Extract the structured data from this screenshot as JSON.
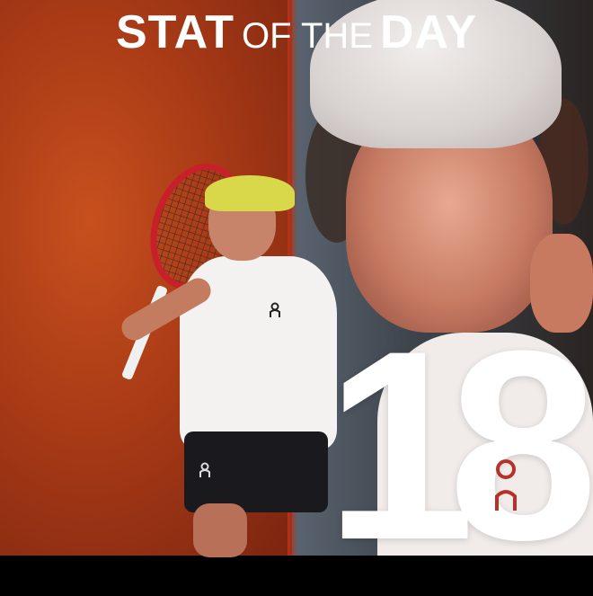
{
  "header": {
    "title_bold_1": "STAT",
    "title_light": "OF THE",
    "title_bold_2": "DAY"
  },
  "stat": {
    "value": "18"
  },
  "decorative": {
    "clothing_logo": "On"
  },
  "colors": {
    "left_background": "#b8401a",
    "right_background": "#4a5058",
    "text": "#ffffff"
  }
}
